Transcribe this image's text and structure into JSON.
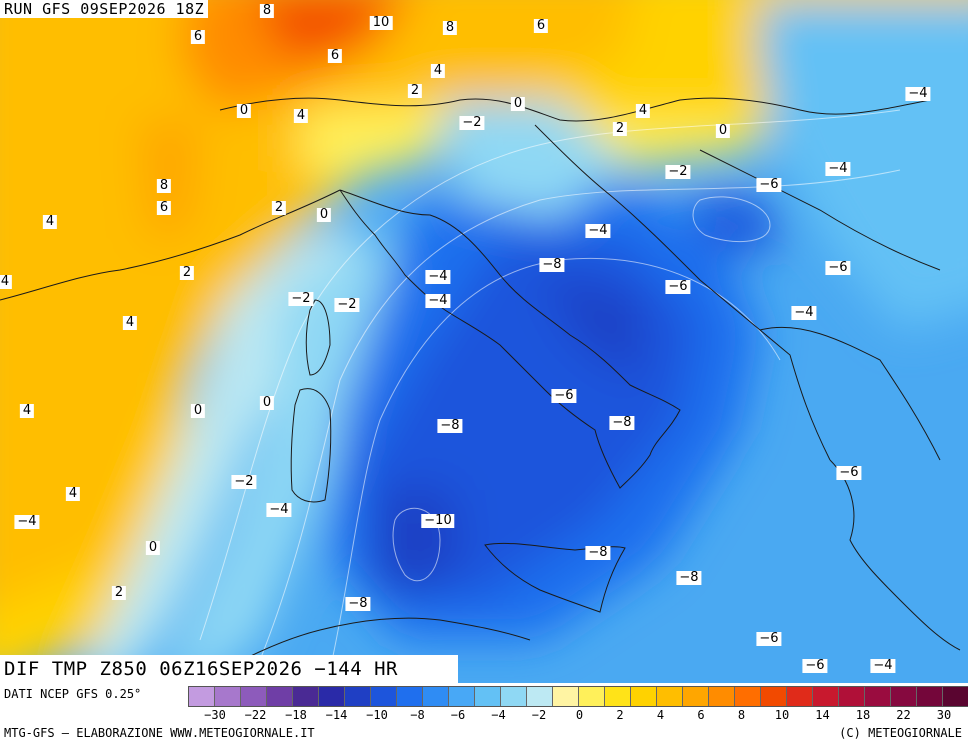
{
  "header": {
    "run_title": "RUN GFS 09SEP2026 18Z"
  },
  "field_title": "DIF TMP Z850 06Z16SEP2026 −144 HR",
  "footer": {
    "data_source": "DATI NCEP GFS 0.25°",
    "credit_left": "MTG-GFS — ELABORAZIONE WWW.METEOGIORNALE.IT",
    "credit_right": "(C) METEOGIORNALE"
  },
  "colorbar": {
    "colors": [
      "#c39be0",
      "#a778cc",
      "#8d5bbb",
      "#6f3ea6",
      "#4a2a94",
      "#2a2aa8",
      "#1f3fc4",
      "#1d55dc",
      "#1f6fee",
      "#2f8cf4",
      "#48a8f6",
      "#63c1f5",
      "#8fd8f4",
      "#bde9f3",
      "#fff4a3",
      "#fff05a",
      "#ffe318",
      "#ffd200",
      "#ffbe00",
      "#ffa600",
      "#ff8c00",
      "#ff6e00",
      "#f24a00",
      "#e02b1a",
      "#c8192e",
      "#b01038",
      "#9a0c3f",
      "#86093f",
      "#74063a",
      "#5a0530"
    ],
    "tick_labels": [
      "−30",
      "−22",
      "−18",
      "−14",
      "−10",
      "−8",
      "−6",
      "−4",
      "−2",
      "0",
      "2",
      "4",
      "6",
      "8",
      "10",
      "14",
      "18",
      "22",
      "30"
    ]
  },
  "map": {
    "isoline_labels": [
      "8",
      "10",
      "8",
      "6",
      "6",
      "6",
      "4",
      "2",
      "0",
      "4",
      "2",
      "0",
      "4",
      "0",
      "−2",
      "−2",
      "−4",
      "−6",
      "−4",
      "−4",
      "8",
      "6",
      "2",
      "0",
      "4",
      "2",
      "4",
      "−2",
      "−2",
      "−4",
      "−4",
      "−8",
      "−6",
      "−6",
      "−4",
      "4",
      "0",
      "0",
      "−6",
      "−8",
      "−8",
      "−2",
      "−4",
      "4",
      "4",
      "0",
      "−10",
      "−8",
      "−8",
      "2",
      "−8",
      "−6",
      "−6",
      "−6",
      "−4",
      "−4"
    ]
  }
}
